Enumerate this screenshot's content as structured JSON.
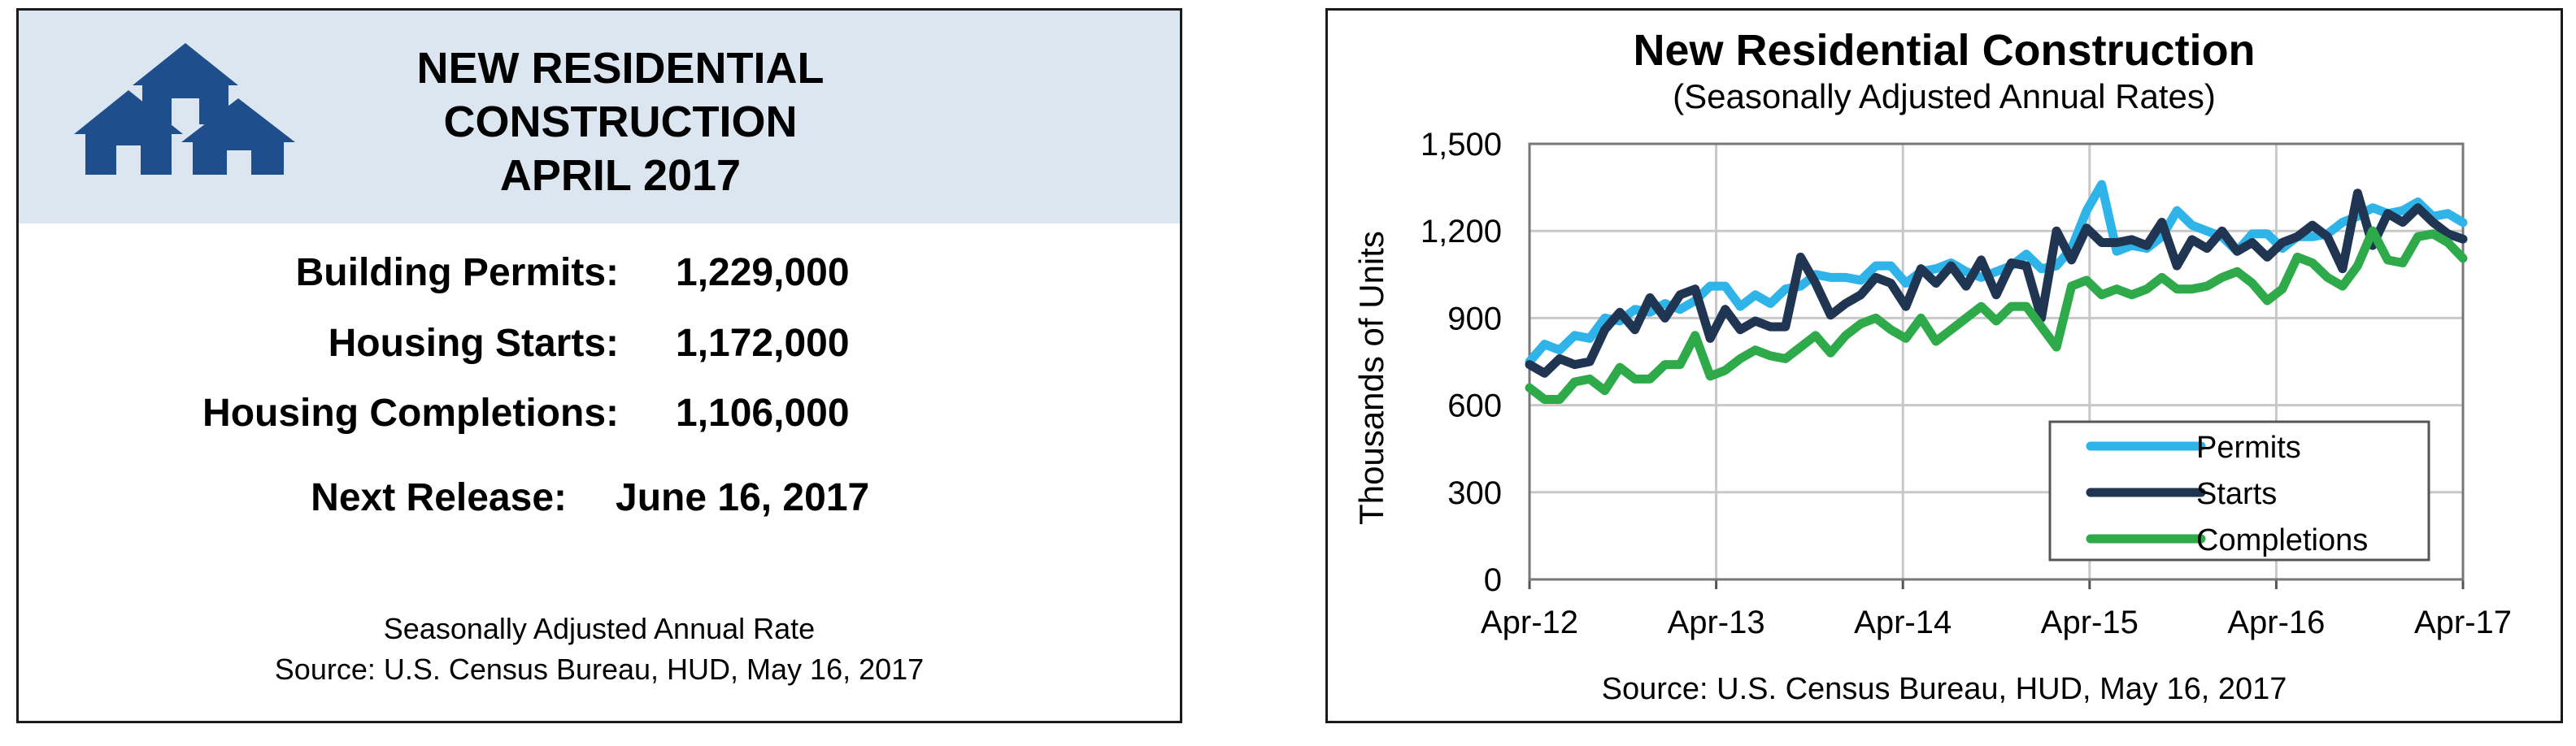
{
  "summary": {
    "title_lines": [
      "NEW RESIDENTIAL",
      "CONSTRUCTION",
      "APRIL 2017"
    ],
    "icon": "houses-icon",
    "stats": [
      {
        "label": "Building Permits:",
        "value": "1,229,000"
      },
      {
        "label": "Housing Starts:",
        "value": "1,172,000"
      },
      {
        "label": "Housing Completions:",
        "value": "1,106,000"
      }
    ],
    "next_release_label": "Next Release:",
    "next_release_date": "June 16, 2017",
    "footnote_line1": "Seasonally Adjusted Annual Rate",
    "footnote_line2": "Source:  U.S. Census Bureau, HUD, May 16, 2017"
  },
  "colors": {
    "banner": "#dce6f0",
    "icon": "#1f4e8c",
    "permits": "#2fb4ea",
    "starts": "#1f3552",
    "completions": "#2eaa4a"
  },
  "chart_data": {
    "type": "line",
    "title": "New Residential Construction",
    "subtitle": "(Seasonally Adjusted Annual Rates)",
    "ylabel": "Thousands of Units",
    "xlabel": "",
    "source": "Source:  U.S. Census Bureau, HUD, May 16, 2017",
    "ylim": [
      0,
      1500
    ],
    "yticks": [
      0,
      300,
      600,
      900,
      1200,
      1500
    ],
    "ytick_labels": [
      "0",
      "300",
      "600",
      "900",
      "1,200",
      "1,500"
    ],
    "x_start": "Apr-12",
    "x_end": "Apr-17",
    "xticks": [
      "Apr-12",
      "Apr-13",
      "Apr-14",
      "Apr-15",
      "Apr-16",
      "Apr-17"
    ],
    "grid": true,
    "legend_position": "bottom-right",
    "series": [
      {
        "name": "Permits",
        "color": "#2fb4ea",
        "values": [
          750,
          810,
          790,
          840,
          830,
          900,
          890,
          930,
          920,
          950,
          930,
          960,
          1010,
          1010,
          940,
          980,
          950,
          1000,
          1010,
          1050,
          1040,
          1040,
          1030,
          1080,
          1080,
          1020,
          1060,
          1070,
          1090,
          1060,
          1040,
          1060,
          1080,
          1120,
          1070,
          1080,
          1140,
          1270,
          1360,
          1130,
          1150,
          1140,
          1180,
          1270,
          1220,
          1200,
          1180,
          1130,
          1190,
          1190,
          1140,
          1180,
          1180,
          1190,
          1230,
          1250,
          1280,
          1260,
          1270,
          1300,
          1250,
          1260,
          1229
        ]
      },
      {
        "name": "Starts",
        "color": "#1f3552",
        "values": [
          740,
          710,
          760,
          740,
          750,
          860,
          920,
          860,
          970,
          900,
          980,
          1000,
          830,
          930,
          860,
          890,
          870,
          870,
          1110,
          1020,
          910,
          950,
          980,
          1040,
          1020,
          940,
          1070,
          1020,
          1080,
          1010,
          1100,
          980,
          1090,
          1080,
          900,
          1200,
          1100,
          1210,
          1160,
          1160,
          1170,
          1150,
          1230,
          1080,
          1170,
          1140,
          1200,
          1130,
          1160,
          1110,
          1160,
          1180,
          1220,
          1180,
          1070,
          1330,
          1150,
          1260,
          1230,
          1280,
          1230,
          1190,
          1172
        ]
      },
      {
        "name": "Completions",
        "color": "#2eaa4a",
        "values": [
          660,
          620,
          620,
          680,
          690,
          650,
          730,
          690,
          690,
          740,
          740,
          840,
          700,
          720,
          760,
          790,
          770,
          760,
          800,
          840,
          780,
          840,
          880,
          900,
          860,
          830,
          900,
          820,
          860,
          900,
          940,
          890,
          940,
          940,
          870,
          800,
          1010,
          1030,
          980,
          1000,
          980,
          1000,
          1040,
          1000,
          1000,
          1010,
          1040,
          1060,
          1020,
          960,
          1000,
          1110,
          1090,
          1040,
          1010,
          1080,
          1200,
          1100,
          1090,
          1180,
          1190,
          1160,
          1106
        ]
      }
    ]
  }
}
